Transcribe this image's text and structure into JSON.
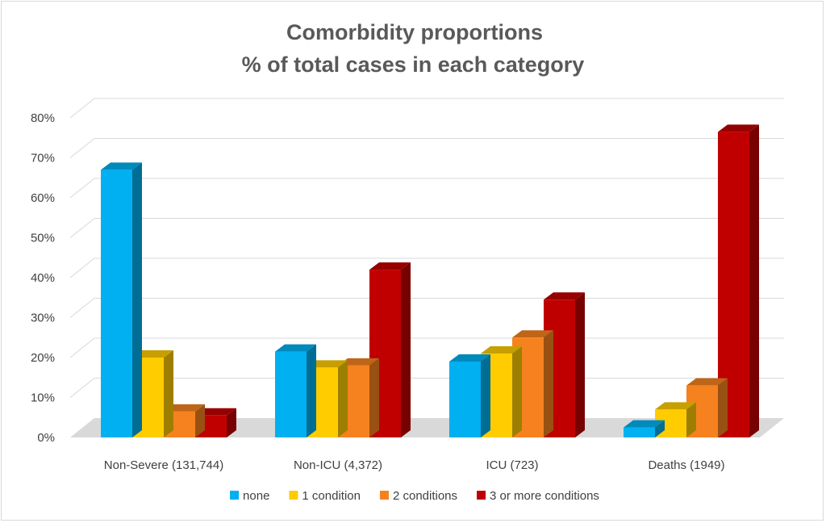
{
  "chart_data": {
    "type": "bar",
    "style": "3d-clustered-column",
    "title": "Comorbidity proportions",
    "subtitle": "% of total cases in each category",
    "categories": [
      "Non-Severe (131,744)",
      "Non-ICU (4,372)",
      "ICU (723)",
      "Deaths (1949)"
    ],
    "series": [
      {
        "name": "none",
        "color": "#00b0f0",
        "values": [
          67,
          21.5,
          19,
          2.5
        ]
      },
      {
        "name": "1 condition",
        "color": "#ffcc00",
        "values": [
          20,
          17.5,
          21,
          7
        ]
      },
      {
        "name": "2 conditions",
        "color": "#f5821f",
        "values": [
          6.5,
          18,
          25,
          13
        ]
      },
      {
        "name": "3 or more conditions",
        "color": "#c00000",
        "values": [
          5.5,
          42,
          34.5,
          76.5
        ]
      }
    ],
    "y_ticks": [
      "0%",
      "10%",
      "20%",
      "30%",
      "40%",
      "50%",
      "60%",
      "70%",
      "80%"
    ],
    "ylim": [
      0,
      80
    ],
    "grid": true,
    "legend_position": "bottom"
  }
}
